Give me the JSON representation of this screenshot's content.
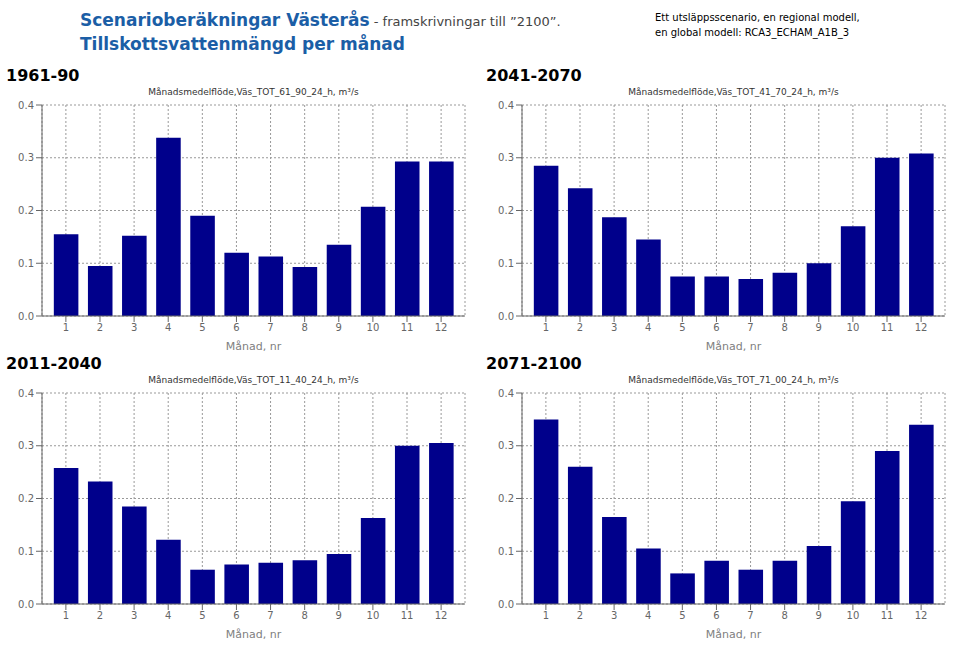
{
  "title": "Scenarioberäkningar Västerås",
  "subtitle": "- framskrivningar till ”2100”.",
  "annotations": [
    "Tillskottsvattenmängd per månad",
    "Ett utsläppsscenario, en regional modell,",
    "en global modell: RCA3_ECHAM_A1B_3"
  ],
  "chart_data": [
    {
      "type": "bar",
      "title": "1961-90",
      "subtitle": "Månadsmedelflöde,Väs_TOT_61_90_24_h, m³/s",
      "xlabel": "Månad, nr",
      "x": [
        1,
        2,
        3,
        4,
        5,
        6,
        7,
        8,
        9,
        10,
        11,
        12
      ],
      "values": [
        0.155,
        0.095,
        0.152,
        0.338,
        0.19,
        0.12,
        0.113,
        0.093,
        0.135,
        0.207,
        0.293,
        0.293
      ],
      "color": "#00008B",
      "xlim": [
        0.3,
        12.7
      ],
      "xticks": [
        1,
        2,
        3,
        4,
        5,
        6,
        7,
        8,
        9,
        10,
        11,
        12
      ],
      "ylim": [
        0,
        0.4
      ],
      "yticks": [
        {
          "value": 0,
          "label": "0.0"
        },
        0.1,
        0.2,
        0.3,
        0.4
      ],
      "grid": true
    },
    {
      "type": "bar",
      "title": "2041-2070",
      "subtitle": "Månadsmedelflöde,Väs_TOT_41_70_24_h, m³/s",
      "xlabel": "Månad, nr",
      "x": [
        1,
        2,
        3,
        4,
        5,
        6,
        7,
        8,
        9,
        10,
        11,
        12
      ],
      "values": [
        0.285,
        0.242,
        0.187,
        0.145,
        0.075,
        0.075,
        0.07,
        0.082,
        0.1,
        0.17,
        0.3,
        0.308
      ],
      "color": "#00008B",
      "xlim": [
        0.3,
        12.7
      ],
      "xticks": [
        1,
        2,
        3,
        4,
        5,
        6,
        7,
        8,
        9,
        10,
        11,
        12
      ],
      "ylim": [
        0,
        0.4
      ],
      "yticks": [
        {
          "value": 0,
          "label": "0.0"
        },
        0.1,
        0.2,
        0.3,
        0.4
      ],
      "grid": true
    },
    {
      "type": "bar",
      "title": "2011-2040",
      "subtitle": "Månadsmedelflöde,Väs_TOT_11_40_24_h, m³/s",
      "xlabel": "Månad, nr",
      "x": [
        1,
        2,
        3,
        4,
        5,
        6,
        7,
        8,
        9,
        10,
        11,
        12
      ],
      "values": [
        0.258,
        0.232,
        0.185,
        0.122,
        0.065,
        0.075,
        0.078,
        0.083,
        0.095,
        0.163,
        0.3,
        0.305
      ],
      "color": "#00008B",
      "xlim": [
        0.3,
        12.7
      ],
      "xticks": [
        1,
        2,
        3,
        4,
        5,
        6,
        7,
        8,
        9,
        10,
        11,
        12
      ],
      "ylim": [
        0,
        0.4
      ],
      "yticks": [
        {
          "value": 0,
          "label": "0.0"
        },
        0.1,
        0.2,
        0.3,
        0.4
      ],
      "grid": true
    },
    {
      "type": "bar",
      "title": "2071-2100",
      "subtitle": "Månadsmedelflöde,Väs_TOT_71_00_24_h, m³/s",
      "xlabel": "Månad, nr",
      "x": [
        1,
        2,
        3,
        4,
        5,
        6,
        7,
        8,
        9,
        10,
        11,
        12
      ],
      "values": [
        0.35,
        0.26,
        0.165,
        0.105,
        0.058,
        0.082,
        0.065,
        0.082,
        0.11,
        0.195,
        0.29,
        0.34
      ],
      "color": "#00008B",
      "xlim": [
        0.3,
        12.7
      ],
      "xticks": [
        1,
        2,
        3,
        4,
        5,
        6,
        7,
        8,
        9,
        10,
        11,
        12
      ],
      "ylim": [
        0,
        0.4
      ],
      "yticks": [
        {
          "value": 0,
          "label": "0.0"
        },
        0.1,
        0.2,
        0.3,
        0.4
      ],
      "grid": true
    }
  ]
}
